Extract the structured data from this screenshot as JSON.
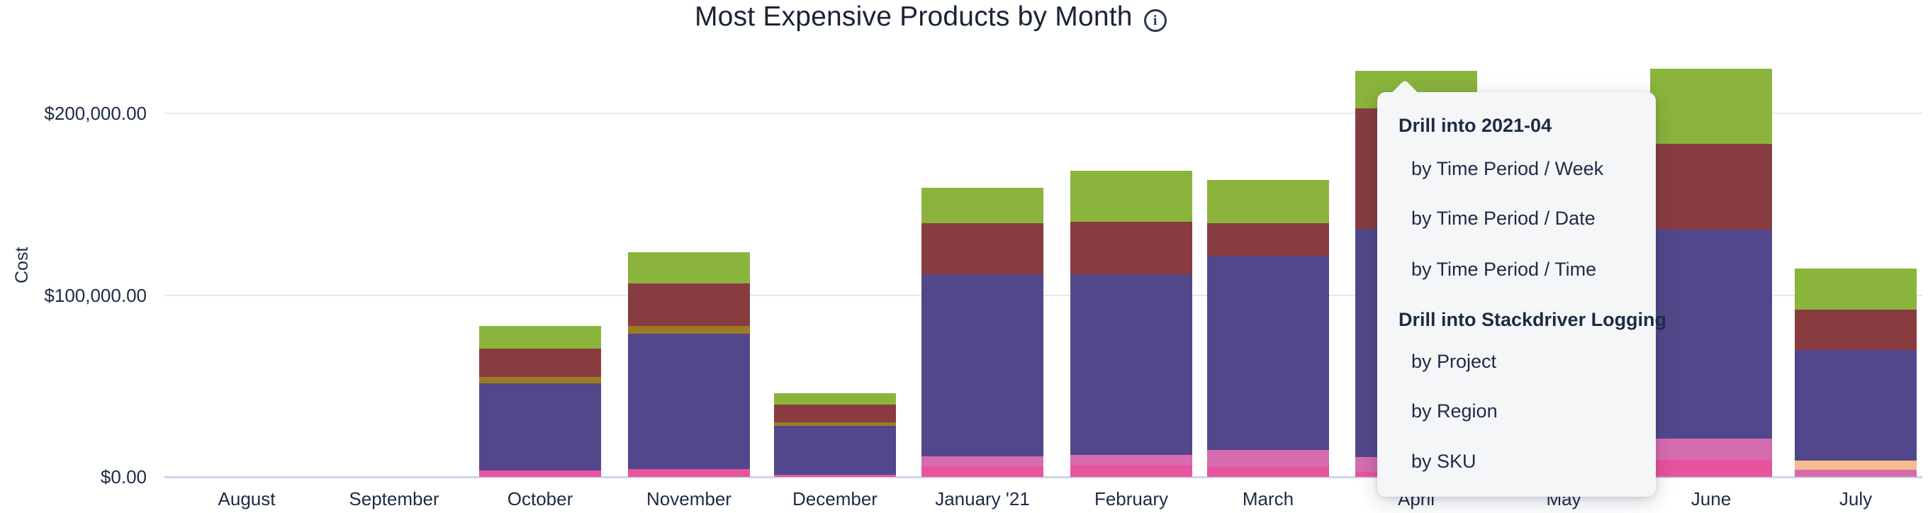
{
  "title": {
    "text": "Most Expensive Products by Month",
    "info_icon": "i"
  },
  "y_axis": {
    "label": "Cost",
    "ticks": [
      {
        "label": "$200,000.00",
        "value": 200000
      },
      {
        "label": "$100,000.00",
        "value": 100000
      },
      {
        "label": "$0.00",
        "value": 0
      }
    ]
  },
  "menu": {
    "rows": [
      {
        "kind": "header",
        "label": "Drill into 2021-04"
      },
      {
        "kind": "item",
        "label": "by Time Period / Week"
      },
      {
        "kind": "item",
        "label": "by Time Period / Date"
      },
      {
        "kind": "item",
        "label": "by Time Period / Time"
      },
      {
        "kind": "header",
        "label": "Drill into Stackdriver Logging"
      },
      {
        "kind": "item",
        "label": "by Project"
      },
      {
        "kind": "item",
        "label": "by Region"
      },
      {
        "kind": "item",
        "label": "by SKU"
      }
    ]
  },
  "colors": {
    "green": "#8ab43c",
    "maroon": "#883c40",
    "olive": "#9c7b24",
    "purple": "#52478a",
    "light_pink": "#d56cae",
    "dark_pink": "#e7539d",
    "orange": "#f5bd8d",
    "title_text": "#1a2433",
    "axis_text": "#1e2b45",
    "menu_bg": "#f5f6f8",
    "gridline": "#e7e7ea",
    "baseline": "#ccd5e8",
    "background": "#ffffff"
  },
  "chart_data": {
    "type": "bar",
    "stacked": true,
    "title": "Most Expensive Products by Month",
    "xlabel": "",
    "ylabel": "Cost",
    "ylim": [
      0,
      240000
    ],
    "gridline_interval": 100000,
    "legend": "none shown; stack segments distinguished by color only. Drill menu implies one clicked product is Stackdriver Logging for 2021-04.",
    "categories": [
      "August",
      "September",
      "October",
      "November",
      "December",
      "January '21",
      "February",
      "March",
      "April",
      "May",
      "June",
      "July"
    ],
    "months": [
      {
        "label": "August",
        "total": 0,
        "segments": []
      },
      {
        "label": "September",
        "total": 0,
        "segments": []
      },
      {
        "label": "October",
        "total": 83000,
        "segments": [
          {
            "color": "dark_pink",
            "value": 3500
          },
          {
            "color": "purple",
            "value": 48100
          },
          {
            "color": "olive",
            "value": 3500
          },
          {
            "color": "maroon",
            "value": 15300
          },
          {
            "color": "green",
            "value": 12600
          }
        ]
      },
      {
        "label": "November",
        "total": 123600,
        "segments": [
          {
            "color": "dark_pink",
            "value": 4300
          },
          {
            "color": "purple",
            "value": 74400
          },
          {
            "color": "olive",
            "value": 4300
          },
          {
            "color": "maroon",
            "value": 23300
          },
          {
            "color": "green",
            "value": 17300
          }
        ]
      },
      {
        "label": "December",
        "total": 45900,
        "segments": [
          {
            "color": "dark_pink",
            "value": 1300
          },
          {
            "color": "purple",
            "value": 26600
          },
          {
            "color": "olive",
            "value": 2000
          },
          {
            "color": "maroon",
            "value": 9800
          },
          {
            "color": "green",
            "value": 6200
          }
        ]
      },
      {
        "label": "January '21",
        "total": 159100,
        "segments": [
          {
            "color": "dark_pink",
            "value": 5700
          },
          {
            "color": "light_pink",
            "value": 5600
          },
          {
            "color": "purple",
            "value": 100100
          },
          {
            "color": "maroon",
            "value": 28300
          },
          {
            "color": "green",
            "value": 19400
          }
        ]
      },
      {
        "label": "February",
        "total": 168300,
        "segments": [
          {
            "color": "dark_pink",
            "value": 6500
          },
          {
            "color": "light_pink",
            "value": 5600
          },
          {
            "color": "purple",
            "value": 99300
          },
          {
            "color": "maroon",
            "value": 28900
          },
          {
            "color": "green",
            "value": 28000
          }
        ]
      },
      {
        "label": "March",
        "total": 163300,
        "segments": [
          {
            "color": "dark_pink",
            "value": 5600
          },
          {
            "color": "light_pink",
            "value": 9400
          },
          {
            "color": "purple",
            "value": 106600
          },
          {
            "color": "maroon",
            "value": 17900
          },
          {
            "color": "green",
            "value": 23800
          }
        ]
      },
      {
        "label": "April",
        "total": 223500,
        "segments": [
          {
            "color": "dark_pink",
            "value": 2900
          },
          {
            "color": "light_pink",
            "value": 8200
          },
          {
            "color": "purple",
            "value": 125400
          },
          {
            "color": "maroon",
            "value": 66200
          },
          {
            "color": "green",
            "value": 20800
          }
        ]
      },
      {
        "label": "May",
        "total": null,
        "occluded_by_menu": true,
        "segments": null
      },
      {
        "label": "June",
        "total": 224700,
        "segments": [
          {
            "color": "dark_pink",
            "value": 9400
          },
          {
            "color": "light_pink",
            "value": 11700
          },
          {
            "color": "purple",
            "value": 115100
          },
          {
            "color": "maroon",
            "value": 47200
          },
          {
            "color": "green",
            "value": 41300
          }
        ]
      },
      {
        "label": "July",
        "total": 114500,
        "segments": [
          {
            "color": "light_pink",
            "value": 3800
          },
          {
            "color": "orange",
            "value": 5000
          },
          {
            "color": "purple",
            "value": 60900
          },
          {
            "color": "maroon",
            "value": 22200
          },
          {
            "color": "green",
            "value": 22600
          }
        ]
      }
    ]
  }
}
